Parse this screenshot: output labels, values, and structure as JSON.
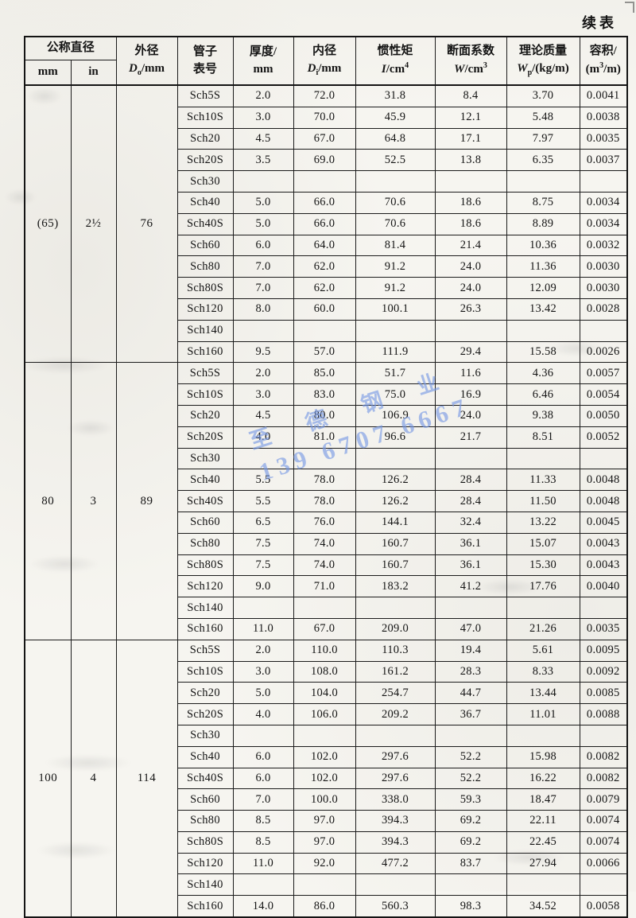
{
  "page": {
    "continued_label": "续表"
  },
  "watermark": {
    "line1": "至 德 钢 业",
    "line2": "139 6707 6667",
    "color": "#7496e4"
  },
  "table": {
    "header": {
      "nominal_diameter": "公称直径",
      "nominal_mm": "mm",
      "nominal_in": "in",
      "outer_title": "外径",
      "outer_sym": "D",
      "outer_sub": "o",
      "outer_unit": "/mm",
      "schedule_line1": "管子",
      "schedule_line2": "表号",
      "thickness_line1": "厚度/",
      "thickness_line2": "mm",
      "inner_title": "内径",
      "inner_sym": "D",
      "inner_sub": "i",
      "inner_unit": "/mm",
      "inertia_title": "惯性矩",
      "inertia_sym": "I",
      "inertia_unit": "/cm",
      "inertia_sup": "4",
      "section_title": "断面系数",
      "section_sym": "W",
      "section_unit": "/cm",
      "section_sup": "3",
      "mass_title": "理论质量",
      "mass_sym": "W",
      "mass_sub": "p",
      "mass_unit": "/(kg/m)",
      "volume_line1": "容积/",
      "volume_open": "(m",
      "volume_sup": "3",
      "volume_close": "/m)"
    },
    "column_keys": [
      "sch",
      "thickness",
      "inner-diameter",
      "inertia",
      "section-modulus",
      "mass",
      "volume"
    ],
    "groups": [
      {
        "dn_mm": "(65)",
        "dn_in": "2½",
        "od": "76",
        "rows": [
          [
            "Sch5S",
            "2.0",
            "72.0",
            "31.8",
            "8.4",
            "3.70",
            "0.0041"
          ],
          [
            "Sch10S",
            "3.0",
            "70.0",
            "45.9",
            "12.1",
            "5.48",
            "0.0038"
          ],
          [
            "Sch20",
            "4.5",
            "67.0",
            "64.8",
            "17.1",
            "7.97",
            "0.0035"
          ],
          [
            "Sch20S",
            "3.5",
            "69.0",
            "52.5",
            "13.8",
            "6.35",
            "0.0037"
          ],
          [
            "Sch30",
            "",
            "",
            "",
            "",
            "",
            ""
          ],
          [
            "Sch40",
            "5.0",
            "66.0",
            "70.6",
            "18.6",
            "8.75",
            "0.0034"
          ],
          [
            "Sch40S",
            "5.0",
            "66.0",
            "70.6",
            "18.6",
            "8.89",
            "0.0034"
          ],
          [
            "Sch60",
            "6.0",
            "64.0",
            "81.4",
            "21.4",
            "10.36",
            "0.0032"
          ],
          [
            "Sch80",
            "7.0",
            "62.0",
            "91.2",
            "24.0",
            "11.36",
            "0.0030"
          ],
          [
            "Sch80S",
            "7.0",
            "62.0",
            "91.2",
            "24.0",
            "12.09",
            "0.0030"
          ],
          [
            "Sch120",
            "8.0",
            "60.0",
            "100.1",
            "26.3",
            "13.42",
            "0.0028"
          ],
          [
            "Sch140",
            "",
            "",
            "",
            "",
            "",
            ""
          ],
          [
            "Sch160",
            "9.5",
            "57.0",
            "111.9",
            "29.4",
            "15.58",
            "0.0026"
          ]
        ]
      },
      {
        "dn_mm": "80",
        "dn_in": "3",
        "od": "89",
        "rows": [
          [
            "Sch5S",
            "2.0",
            "85.0",
            "51.7",
            "11.6",
            "4.36",
            "0.0057"
          ],
          [
            "Sch10S",
            "3.0",
            "83.0",
            "75.0",
            "16.9",
            "6.46",
            "0.0054"
          ],
          [
            "Sch20",
            "4.5",
            "80.0",
            "106.9",
            "24.0",
            "9.38",
            "0.0050"
          ],
          [
            "Sch20S",
            "4.0",
            "81.0",
            "96.6",
            "21.7",
            "8.51",
            "0.0052"
          ],
          [
            "Sch30",
            "",
            "",
            "",
            "",
            "",
            ""
          ],
          [
            "Sch40",
            "5.5",
            "78.0",
            "126.2",
            "28.4",
            "11.33",
            "0.0048"
          ],
          [
            "Sch40S",
            "5.5",
            "78.0",
            "126.2",
            "28.4",
            "11.50",
            "0.0048"
          ],
          [
            "Sch60",
            "6.5",
            "76.0",
            "144.1",
            "32.4",
            "13.22",
            "0.0045"
          ],
          [
            "Sch80",
            "7.5",
            "74.0",
            "160.7",
            "36.1",
            "15.07",
            "0.0043"
          ],
          [
            "Sch80S",
            "7.5",
            "74.0",
            "160.7",
            "36.1",
            "15.30",
            "0.0043"
          ],
          [
            "Sch120",
            "9.0",
            "71.0",
            "183.2",
            "41.2",
            "17.76",
            "0.0040"
          ],
          [
            "Sch140",
            "",
            "",
            "",
            "",
            "",
            ""
          ],
          [
            "Sch160",
            "11.0",
            "67.0",
            "209.0",
            "47.0",
            "21.26",
            "0.0035"
          ]
        ]
      },
      {
        "dn_mm": "100",
        "dn_in": "4",
        "od": "114",
        "rows": [
          [
            "Sch5S",
            "2.0",
            "110.0",
            "110.3",
            "19.4",
            "5.61",
            "0.0095"
          ],
          [
            "Sch10S",
            "3.0",
            "108.0",
            "161.2",
            "28.3",
            "8.33",
            "0.0092"
          ],
          [
            "Sch20",
            "5.0",
            "104.0",
            "254.7",
            "44.7",
            "13.44",
            "0.0085"
          ],
          [
            "Sch20S",
            "4.0",
            "106.0",
            "209.2",
            "36.7",
            "11.01",
            "0.0088"
          ],
          [
            "Sch30",
            "",
            "",
            "",
            "",
            "",
            ""
          ],
          [
            "Sch40",
            "6.0",
            "102.0",
            "297.6",
            "52.2",
            "15.98",
            "0.0082"
          ],
          [
            "Sch40S",
            "6.0",
            "102.0",
            "297.6",
            "52.2",
            "16.22",
            "0.0082"
          ],
          [
            "Sch60",
            "7.0",
            "100.0",
            "338.0",
            "59.3",
            "18.47",
            "0.0079"
          ],
          [
            "Sch80",
            "8.5",
            "97.0",
            "394.3",
            "69.2",
            "22.11",
            "0.0074"
          ],
          [
            "Sch80S",
            "8.5",
            "97.0",
            "394.3",
            "69.2",
            "22.45",
            "0.0074"
          ],
          [
            "Sch120",
            "11.0",
            "92.0",
            "477.2",
            "83.7",
            "27.94",
            "0.0066"
          ],
          [
            "Sch140",
            "",
            "",
            "",
            "",
            "",
            ""
          ],
          [
            "Sch160",
            "14.0",
            "86.0",
            "560.3",
            "98.3",
            "34.52",
            "0.0058"
          ]
        ]
      }
    ]
  }
}
